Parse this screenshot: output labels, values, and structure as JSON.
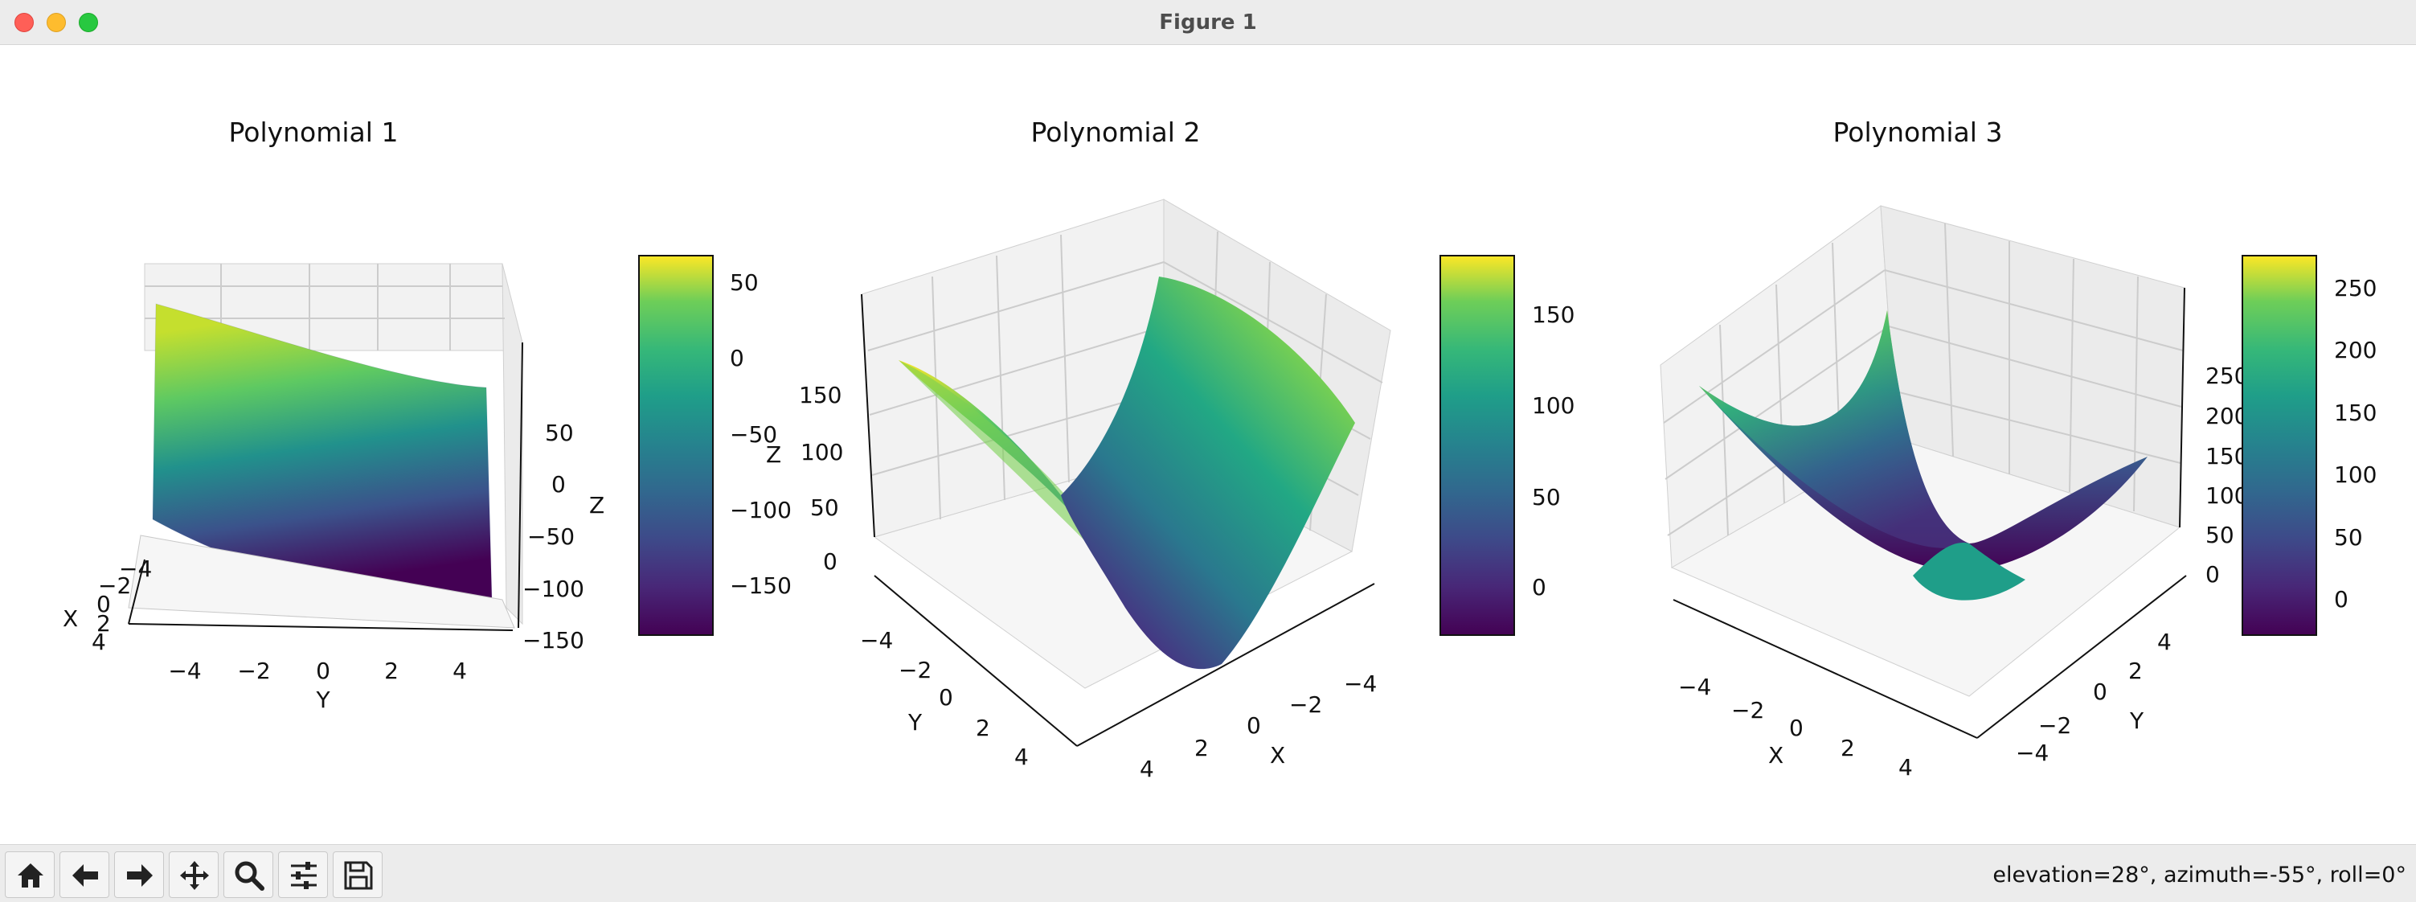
{
  "window": {
    "title": "Figure 1"
  },
  "status": {
    "text": "elevation=28°, azimuth=-55°, roll=0°"
  },
  "toolbar": {
    "items": [
      {
        "name": "home-button",
        "icon": "home-icon"
      },
      {
        "name": "back-button",
        "icon": "arrow-left-icon"
      },
      {
        "name": "forward-button",
        "icon": "arrow-right-icon"
      },
      {
        "name": "pan-button",
        "icon": "move-icon"
      },
      {
        "name": "zoom-button",
        "icon": "magnifier-icon"
      },
      {
        "name": "configure-subplots-button",
        "icon": "sliders-icon"
      },
      {
        "name": "save-button",
        "icon": "floppy-disk-icon"
      }
    ]
  },
  "colormap": "viridis",
  "chart_data": [
    {
      "type": "surface",
      "title": "Polynomial 1",
      "xlabel": "X",
      "ylabel": "Y",
      "zlabel": "Z",
      "x_ticks": [
        "−4",
        "−2",
        "0",
        "2",
        "4"
      ],
      "y_ticks": [
        "−4",
        "−2",
        "0",
        "2",
        "4"
      ],
      "z_ticks": [
        "50",
        "0",
        "−50",
        "−100",
        "−150"
      ],
      "zlim": [
        -180,
        70
      ],
      "colorbar": {
        "ticks": [
          "50",
          "0",
          "−50",
          "−100",
          "−150"
        ],
        "range": [
          -180,
          70
        ]
      }
    },
    {
      "type": "surface",
      "title": "Polynomial 2",
      "xlabel": "X",
      "ylabel": "Y",
      "zlabel": "Z",
      "x_ticks": [
        "4",
        "2",
        "0",
        "−2",
        "−4"
      ],
      "y_ticks": [
        "−4",
        "−2",
        "0",
        "2",
        "4"
      ],
      "z_ticks": [
        "150",
        "100",
        "50",
        "0"
      ],
      "zlim": [
        -20,
        185
      ],
      "colorbar": {
        "ticks": [
          "150",
          "100",
          "50",
          "0"
        ],
        "range": [
          -27,
          183
        ]
      }
    },
    {
      "type": "surface",
      "title": "Polynomial 3",
      "xlabel": "X",
      "ylabel": "Y",
      "zlabel": "",
      "x_ticks": [
        "−4",
        "−2",
        "0",
        "2",
        "4"
      ],
      "y_ticks": [
        "−4",
        "−2",
        "0",
        "2",
        "4"
      ],
      "z_ticks": [
        "250",
        "200",
        "150",
        "100",
        "50",
        "0"
      ],
      "zlim": [
        -10,
        275
      ],
      "colorbar": {
        "ticks": [
          "250",
          "200",
          "150",
          "100",
          "50",
          "0"
        ],
        "range": [
          -25,
          280
        ]
      }
    }
  ]
}
